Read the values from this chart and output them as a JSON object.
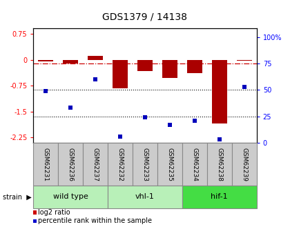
{
  "title": "GDS1379 / 14138",
  "samples": [
    "GSM62231",
    "GSM62236",
    "GSM62237",
    "GSM62232",
    "GSM62233",
    "GSM62235",
    "GSM62234",
    "GSM62238",
    "GSM62239"
  ],
  "log2_ratio": [
    -0.05,
    -0.1,
    0.12,
    -0.82,
    -0.32,
    -0.52,
    -0.38,
    -1.85,
    -0.03
  ],
  "percentile_rank": [
    49,
    33,
    60,
    6,
    24,
    17,
    21,
    3,
    53
  ],
  "groups": [
    {
      "label": "wild type",
      "start": 0,
      "end": 3,
      "color": "#b8f0b8"
    },
    {
      "label": "vhl-1",
      "start": 3,
      "end": 6,
      "color": "#b8f0b8"
    },
    {
      "label": "hif-1",
      "start": 6,
      "end": 9,
      "color": "#44dd44"
    }
  ],
  "ylim_left": [
    -2.4,
    0.9
  ],
  "ylim_right": [
    0,
    108
  ],
  "yticks_left": [
    0.75,
    0,
    -0.75,
    -1.5,
    -2.25
  ],
  "yticks_right": [
    100,
    75,
    50,
    25,
    0
  ],
  "bar_color": "#aa0000",
  "dot_color": "#0000bb",
  "background_color": "#ffffff",
  "sample_box_color": "#cccccc",
  "group_border_color": "#888888",
  "hline0_color": "#cc0000",
  "hline_dotted_color": "#000000",
  "legend_red_color": "#cc0000",
  "legend_blue_color": "#0000cc"
}
